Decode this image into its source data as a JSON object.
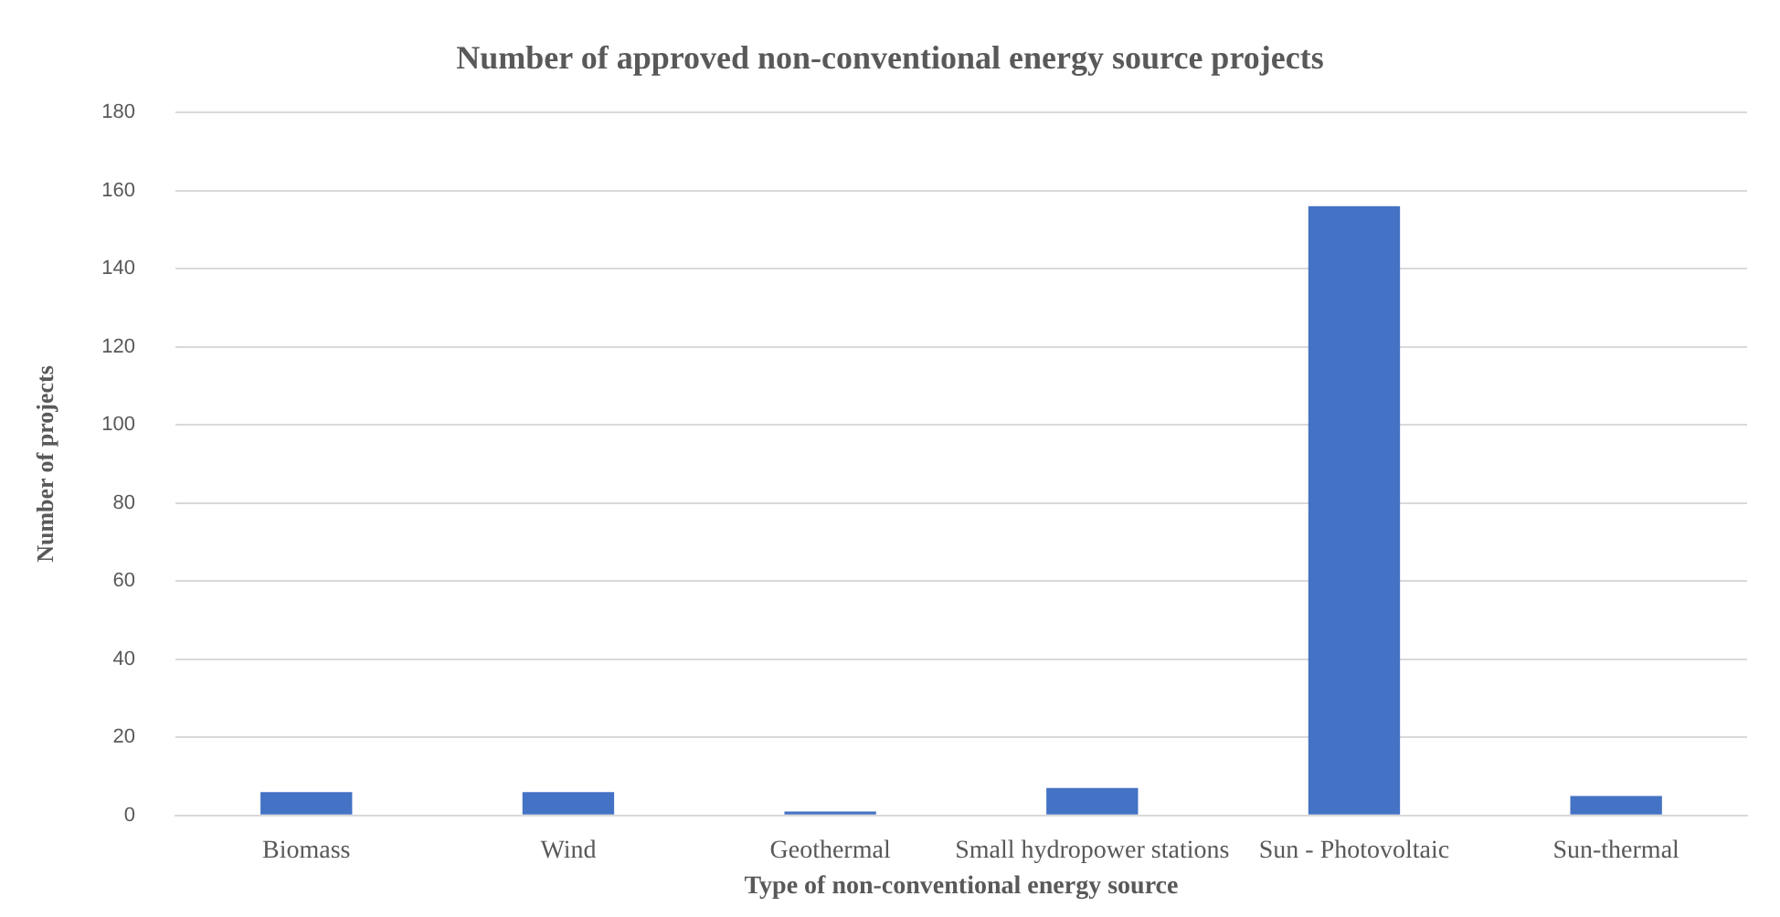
{
  "chart_data": {
    "type": "bar",
    "title": "Number of approved non-conventional energy source projects",
    "xlabel": "Type of non-conventional energy source",
    "ylabel": "Number of projects",
    "categories": [
      "Biomass",
      "Wind",
      "Geothermal",
      "Small hydropower stations",
      "Sun - Photovoltaic",
      "Sun-thermal"
    ],
    "values": [
      6,
      6,
      1,
      7,
      156,
      5
    ],
    "color": "#4472c4",
    "ylim": [
      0,
      180
    ],
    "yticks": [
      0,
      20,
      40,
      60,
      80,
      100,
      120,
      140,
      160,
      180
    ],
    "grid": "y",
    "legend": false
  }
}
